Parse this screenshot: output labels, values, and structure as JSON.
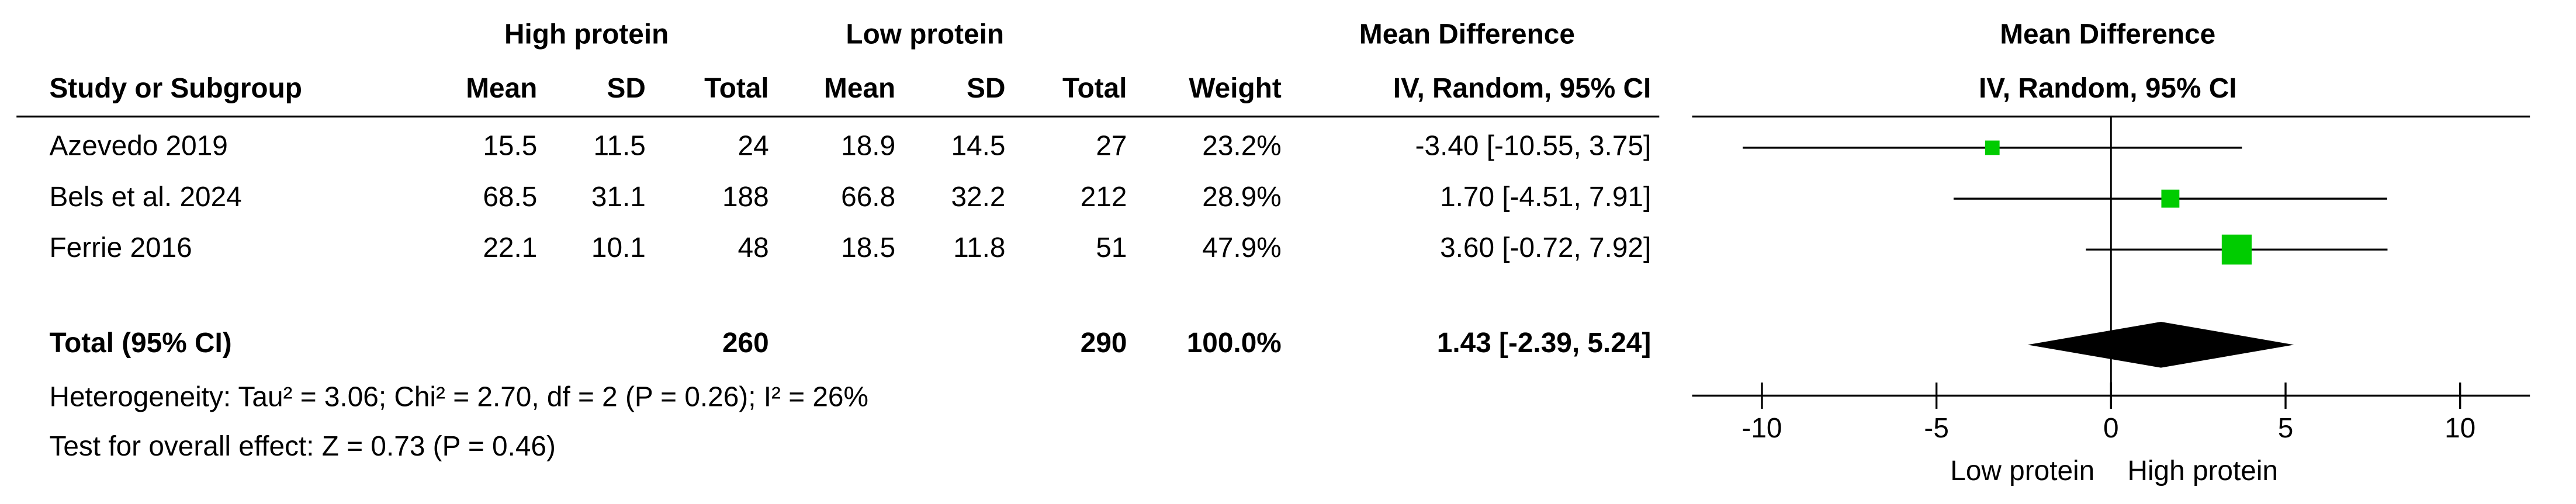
{
  "table": {
    "group_headers": [
      "High protein",
      "Low protein",
      "Mean Difference"
    ],
    "columns": [
      "Study or Subgroup",
      "Mean",
      "SD",
      "Total",
      "Mean",
      "SD",
      "Total",
      "Weight",
      "IV, Random, 95% CI"
    ],
    "rows": [
      [
        "Azevedo 2019",
        "15.5",
        "11.5",
        "24",
        "18.9",
        "14.5",
        "27",
        "23.2%",
        "-3.40 [-10.55, 3.75]"
      ],
      [
        "Bels et al. 2024",
        "68.5",
        "31.1",
        "188",
        "66.8",
        "32.2",
        "212",
        "28.9%",
        "1.70 [-4.51, 7.91]"
      ],
      [
        "Ferrie 2016",
        "22.1",
        "10.1",
        "48",
        "18.5",
        "11.8",
        "51",
        "47.9%",
        "3.60 [-0.72, 7.92]"
      ]
    ],
    "total": {
      "label": "Total (95% CI)",
      "total_high": "260",
      "total_low": "290",
      "weight": "100.0%",
      "effect": "1.43 [-2.39, 5.24]"
    },
    "heterogeneity": "Heterogeneity: Tau² = 3.06; Chi² = 2.70, df = 2 (P = 0.26); I² = 26%",
    "overall_effect": "Test for overall effect: Z = 0.73 (P = 0.46)"
  },
  "chart_data": {
    "type": "forest",
    "title": "Mean Difference",
    "subtitle": "IV, Random, 95% CI",
    "values": [
      -3.4,
      1.7,
      3.6
    ],
    "ci_low": [
      -10.55,
      -4.51,
      -0.72
    ],
    "ci_high": [
      3.75,
      7.91,
      7.92
    ],
    "weights": [
      23.2,
      28.9,
      47.9
    ],
    "total": {
      "value": 1.43,
      "ci_low": -2.39,
      "ci_high": 5.24
    },
    "xlim": [
      -12,
      12
    ],
    "xticks": [
      -10,
      -5,
      0,
      5,
      10
    ],
    "favours": [
      "Low protein",
      "High protein"
    ],
    "color": "#00cc00"
  }
}
